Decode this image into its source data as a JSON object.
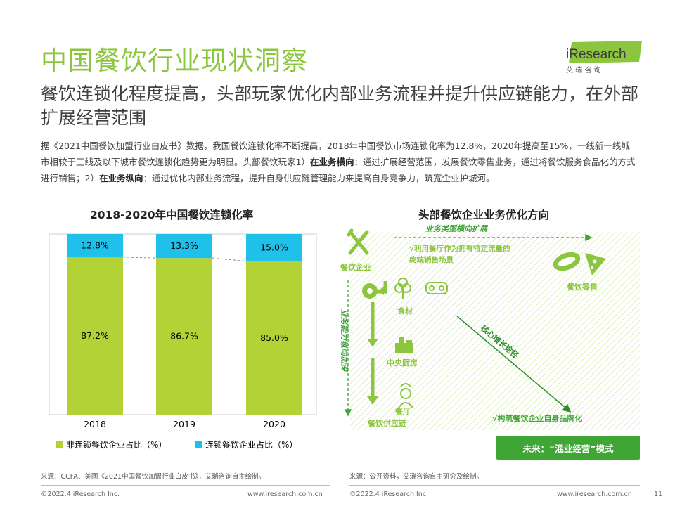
{
  "header": {
    "title": "中国餐饮行业现状洞察",
    "subtitle": "餐饮连锁化程度提高，头部玩家优化内部业务流程并提升供应链能力，在外部扩展经营范围",
    "logo_text": "iResearch",
    "logo_sub": "艾 瑞 咨 询"
  },
  "intro": {
    "p1": "据《2021中国餐饮加盟行业白皮书》数据，我国餐饮连锁化率不断提高，2018年中国餐饮市场连锁化率为12.8%，2020年提高至15%，一线新一线城市相较于三线及以下城市餐饮连锁化趋势更为明显。头部餐饮玩家1）",
    "b1": "在业务横向",
    "p2": "：通过扩展经营范围，发展餐饮零售业务，通过将餐饮服务食品化的方式进行销售；2）",
    "b2": "在业务纵向",
    "p3": "：通过优化内部业务流程，提升自身供应链管理能力来提高自身竞争力，筑宽企业护城河。"
  },
  "left_section": {
    "title": "2018-2020年中国餐饮连锁化率"
  },
  "right_section": {
    "title": "头部餐饮企业业务优化方向",
    "horizontal_label": "业务类型横向扩展",
    "vertical_label": "业务能力纵向加深",
    "growth_label": "核心增长途径",
    "note1_line1": "√利用餐厅作为拥有特定流量的",
    "note1_line2": "终端销售场景",
    "note2": "√构筑餐饮企业自身品牌化",
    "nodes": {
      "enterprise": "餐饮企业",
      "retail": "餐饮零售",
      "ingredients": "食材",
      "kitchen": "中央厨房",
      "restaurant": "餐厅",
      "supply_chain": "餐饮供应链"
    },
    "future_label": "未来：“混业经营”模式"
  },
  "chart_data": {
    "type": "bar",
    "stacked": true,
    "percent_stacked": true,
    "categories": [
      "2018",
      "2019",
      "2020"
    ],
    "series": [
      {
        "name": "非连锁餐饮企业占比（%）",
        "values": [
          87.2,
          86.7,
          85.0
        ],
        "labels": [
          "87.2%",
          "86.7%",
          "85.0%"
        ],
        "color": "#b2d235"
      },
      {
        "name": "连锁餐饮企业占比（%）",
        "values": [
          12.8,
          13.3,
          15.0
        ],
        "labels": [
          "12.8%",
          "13.3%",
          "15.0%"
        ],
        "color": "#1fc0ea"
      }
    ],
    "ylim": [
      0,
      100
    ],
    "legend": "bottom",
    "grid": false,
    "connector_lines": "dashed"
  },
  "sources": {
    "left": "来源：CCFA、美团《2021中国餐饮加盟行业白皮书》，艾瑞咨询自主绘制。",
    "right": "来源：公开资料，艾瑞咨询自主研究及绘制。"
  },
  "footer": {
    "left_copyright": "©2022.4 iResearch Inc.",
    "left_url": "www.iresearch.com.cn",
    "right_copyright": "©2022.4 iResearch Inc.",
    "right_url": "www.iresearch.com.cn",
    "page_number": "11"
  }
}
